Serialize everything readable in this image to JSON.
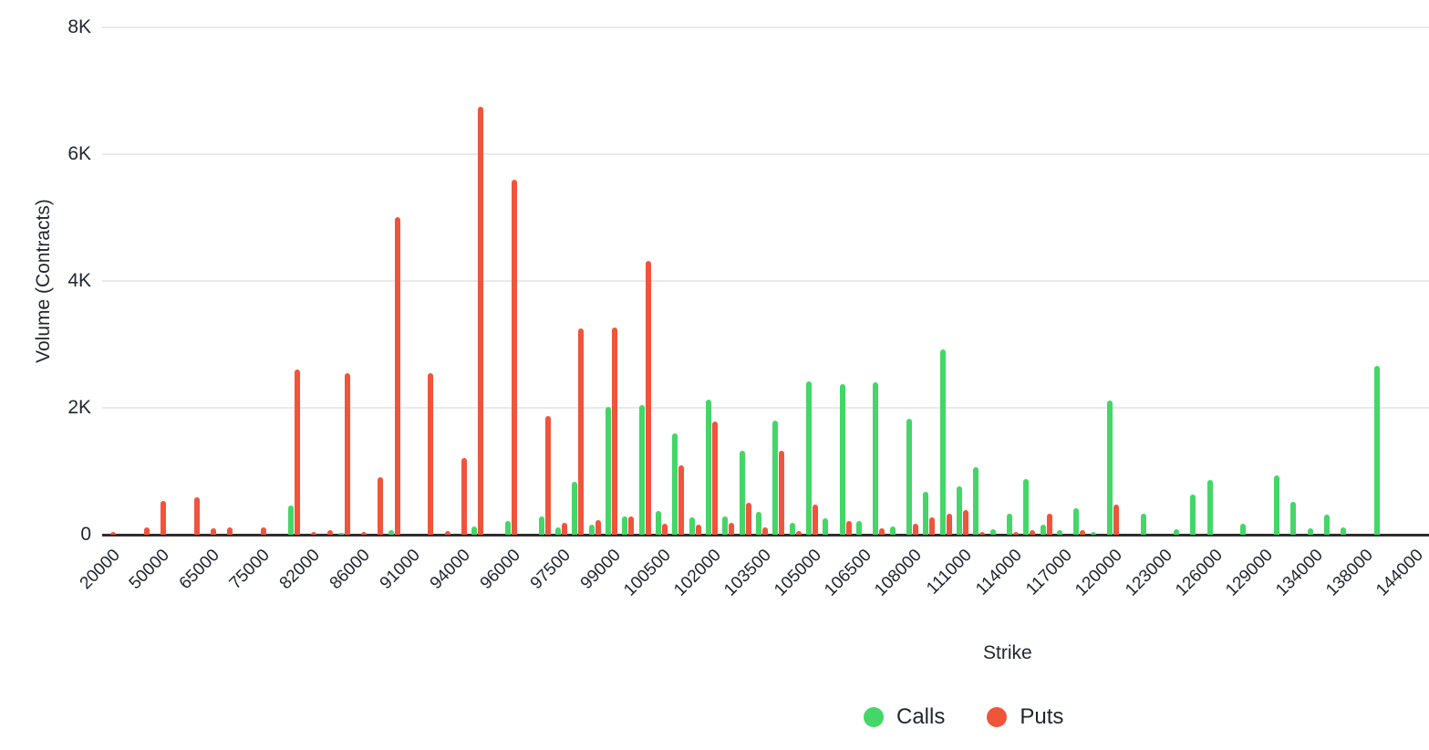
{
  "chart_data": {
    "type": "bar",
    "title": "",
    "xlabel": "Strike",
    "ylabel": "Volume (Contracts)",
    "ylim": [
      0,
      8000
    ],
    "ytick_labels": [
      "0",
      "2K",
      "4K",
      "6K",
      "8K"
    ],
    "ytick_values": [
      0,
      2000,
      4000,
      6000,
      8000
    ],
    "grid": true,
    "legend_position": "bottom-center",
    "x_label_every": 3,
    "categories": [
      "20000",
      "30000",
      "40000",
      "50000",
      "55000",
      "60000",
      "65000",
      "70000",
      "72000",
      "75000",
      "78000",
      "80000",
      "82000",
      "84000",
      "85000",
      "86000",
      "88000",
      "90000",
      "91000",
      "92000",
      "93000",
      "94000",
      "95000",
      "95500",
      "96000",
      "96500",
      "97000",
      "97500",
      "98000",
      "98500",
      "99000",
      "99500",
      "100000",
      "100500",
      "101000",
      "101500",
      "102000",
      "102500",
      "103000",
      "103500",
      "104000",
      "104500",
      "105000",
      "105500",
      "106000",
      "106500",
      "107000",
      "107500",
      "108000",
      "109000",
      "110000",
      "111000",
      "112000",
      "113000",
      "114000",
      "115000",
      "116000",
      "117000",
      "118000",
      "119000",
      "120000",
      "121000",
      "122000",
      "123000",
      "124000",
      "125000",
      "126000",
      "127000",
      "128000",
      "129000",
      "130000",
      "132000",
      "134000",
      "135000",
      "136000",
      "138000",
      "140000",
      "142000",
      "144000"
    ],
    "series": [
      {
        "name": "Calls",
        "color": "#44d668",
        "values": [
          0,
          0,
          0,
          0,
          0,
          0,
          0,
          0,
          0,
          0,
          0,
          460,
          0,
          0,
          35,
          0,
          0,
          70,
          0,
          0,
          0,
          0,
          130,
          0,
          220,
          0,
          290,
          115,
          840,
          160,
          2020,
          290,
          2050,
          380,
          1600,
          280,
          2130,
          290,
          1330,
          360,
          1800,
          180,
          2420,
          265,
          2370,
          220,
          2400,
          130,
          1830,
          675,
          2920,
          765,
          1070,
          85,
          330,
          875,
          160,
          75,
          415,
          45,
          2110,
          0,
          325,
          0,
          85,
          630,
          860,
          0,
          170,
          0,
          940,
          515,
          100,
          315,
          115,
          0,
          2660,
          0,
          0
        ]
      },
      {
        "name": "Puts",
        "color": "#f0543b",
        "values": [
          40,
          0,
          115,
          530,
          0,
          590,
          100,
          115,
          0,
          115,
          0,
          2600,
          40,
          65,
          2550,
          45,
          910,
          5010,
          0,
          2550,
          60,
          1210,
          6750,
          0,
          5600,
          0,
          1870,
          185,
          3250,
          230,
          3260,
          290,
          4310,
          175,
          1100,
          160,
          1790,
          190,
          505,
          115,
          1330,
          60,
          480,
          0,
          220,
          0,
          95,
          0,
          170,
          280,
          335,
          385,
          45,
          0,
          45,
          75,
          335,
          0,
          70,
          0,
          480,
          0,
          0,
          0,
          0,
          0,
          0,
          0,
          0,
          0,
          0,
          0,
          0,
          0,
          0,
          0,
          0,
          0,
          0
        ]
      }
    ]
  },
  "axes": {
    "x_title": "Strike",
    "y_title": "Volume (Contracts)"
  },
  "legend": {
    "items": [
      {
        "label": "Calls",
        "color": "#44d668"
      },
      {
        "label": "Puts",
        "color": "#f0543b"
      }
    ]
  },
  "style": {
    "gridline_color": "#e9e9e9",
    "axis_line_color": "#2e2e2e",
    "text_color": "#1f2630",
    "background": "#ffffff"
  }
}
